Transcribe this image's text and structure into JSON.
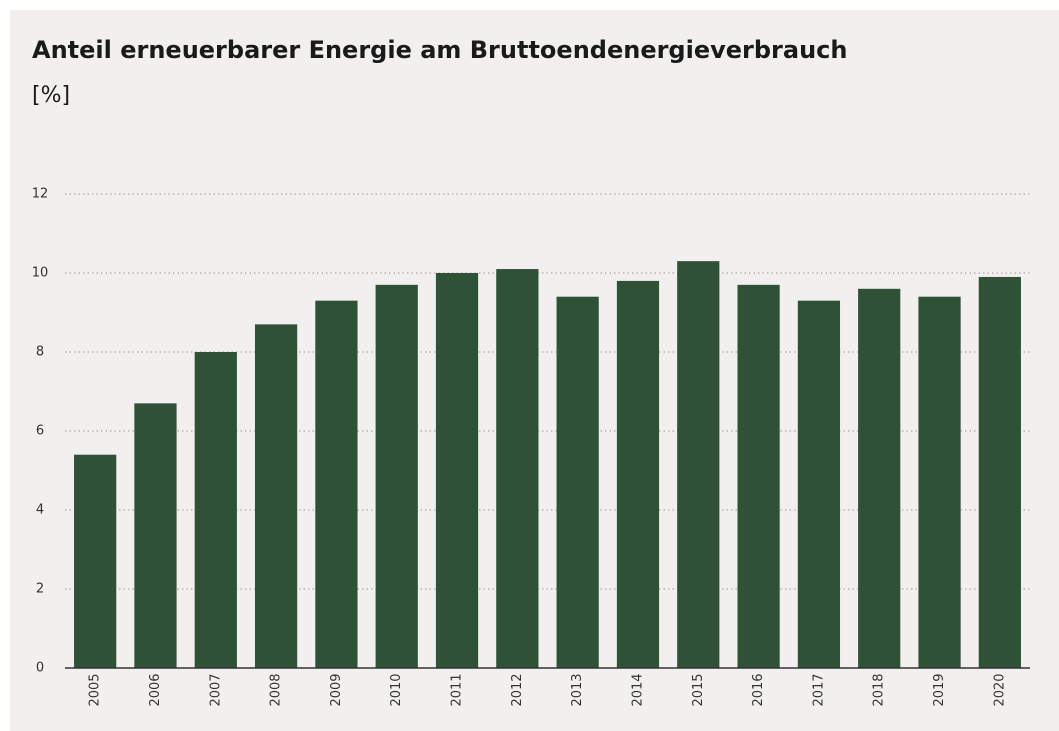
{
  "chart_data": {
    "type": "bar",
    "title": "Anteil erneuerbarer Energie am Bruttoendenergieverbrauch",
    "subtitle": "[%]",
    "categories": [
      "2005",
      "2006",
      "2007",
      "2008",
      "2009",
      "2010",
      "2011",
      "2012",
      "2013",
      "2014",
      "2015",
      "2016",
      "2017",
      "2018",
      "2019",
      "2020"
    ],
    "values": [
      5.4,
      6.7,
      8.0,
      8.7,
      9.3,
      9.7,
      10.0,
      10.1,
      9.4,
      9.8,
      10.3,
      9.7,
      9.3,
      9.6,
      9.4,
      9.9
    ],
    "color": "#2f5135",
    "ylim": [
      0,
      12
    ],
    "yticks": [
      0,
      2,
      4,
      6,
      8,
      10,
      12
    ],
    "grid": true
  }
}
